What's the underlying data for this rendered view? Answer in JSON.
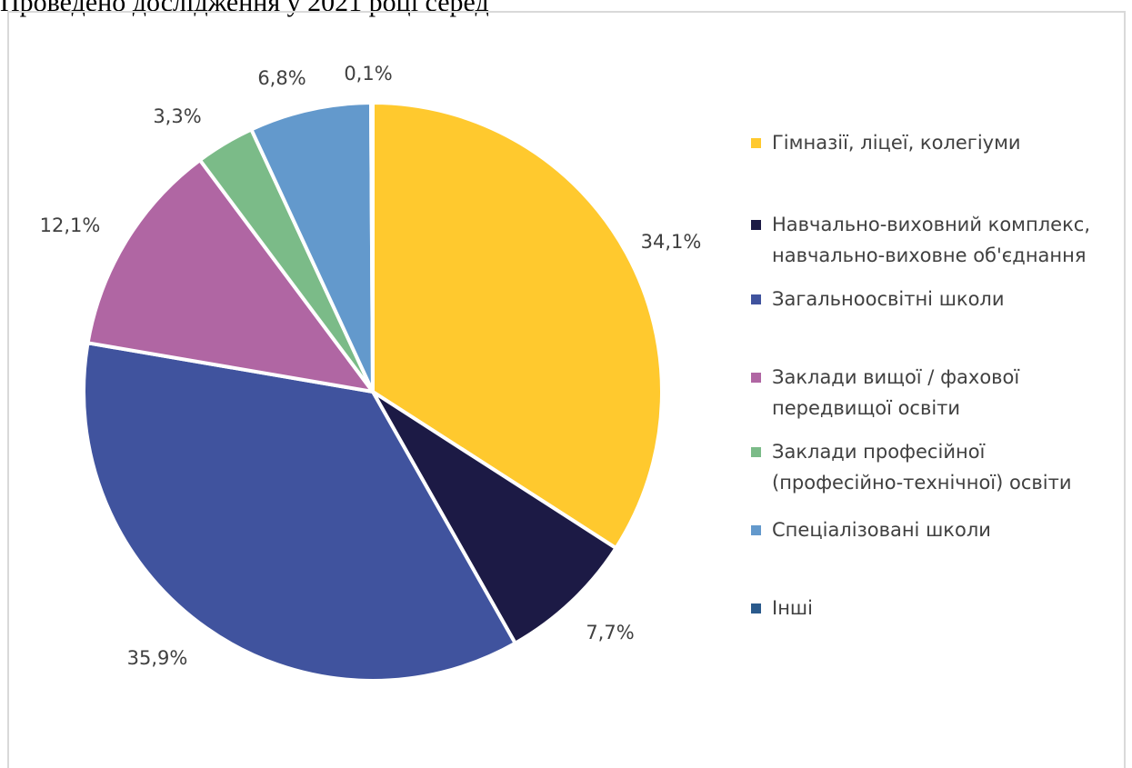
{
  "page": {
    "top_text": "Проведено дослідження у 2021 році серед"
  },
  "chart_data": {
    "type": "pie",
    "title": "",
    "start_angle_deg": 0,
    "direction": "clockwise",
    "slices": [
      {
        "label": "Гімназії, ліцеї, колегіуми",
        "value": 34.1,
        "display": "34,1%",
        "color": "#FFC92E"
      },
      {
        "label": "Навчально-виховний комплекс, навчально-виховне об'єднання",
        "value": 7.7,
        "display": "7,7%",
        "color": "#1C1A45"
      },
      {
        "label": "Загальноосвітні школи",
        "value": 35.9,
        "display": "35,9%",
        "color": "#40539E"
      },
      {
        "label": "Заклади вищої / фахової передвищої освіти",
        "value": 12.1,
        "display": "12,1%",
        "color": "#B066A3"
      },
      {
        "label": "Заклади професійної (професійно-технічної) освіти",
        "value": 3.3,
        "display": "3,3%",
        "color": "#7BBB88"
      },
      {
        "label": "Спеціалізовані школи",
        "value": 6.8,
        "display": "6,8%",
        "color": "#6399CC"
      },
      {
        "label": "Інші",
        "value": 0.1,
        "display": "0,1%",
        "color": "#2A5A8C"
      }
    ],
    "legend": {
      "placement": "right",
      "items": [
        {
          "lines": [
            "Гімназії, ліцеї, колегіуми"
          ]
        },
        {
          "lines": [
            "Навчально-виховний комплекс,",
            "навчально-виховне об'єднання"
          ]
        },
        {
          "lines": [
            "Загальноосвітні школи"
          ]
        },
        {
          "lines": [
            "Заклади вищої / фахової",
            "передвищої освіти"
          ]
        },
        {
          "lines": [
            "Заклади професійної",
            "(професійно-технічної) освіти"
          ]
        },
        {
          "lines": [
            "Спеціалізовані школи"
          ]
        },
        {
          "lines": [
            "Інші"
          ]
        }
      ]
    }
  }
}
